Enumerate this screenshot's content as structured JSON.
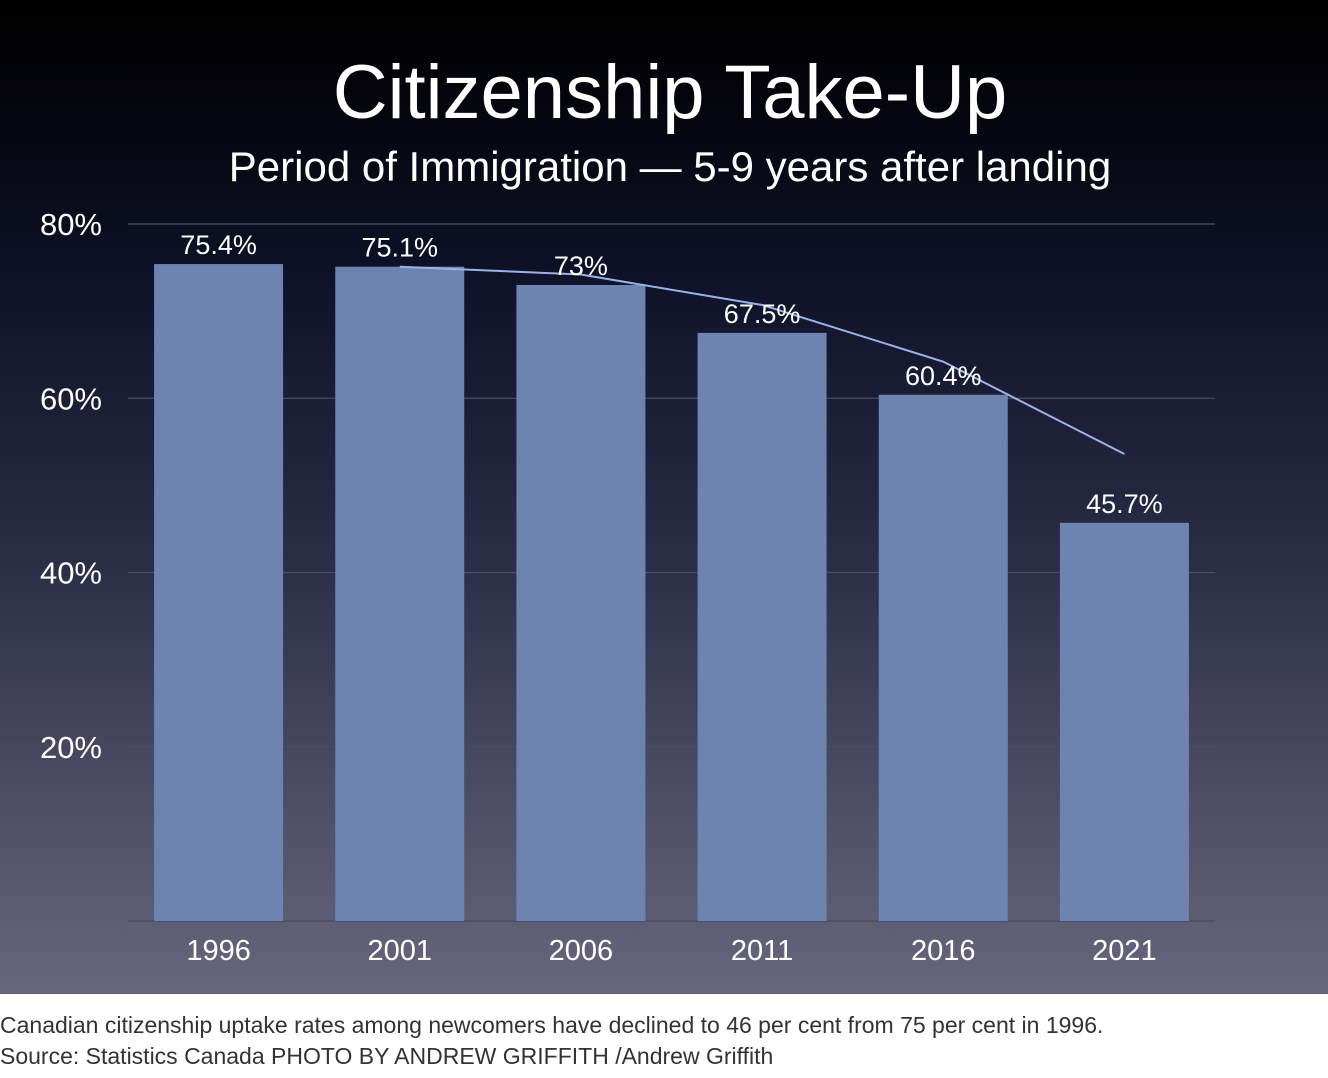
{
  "chart_data": {
    "type": "bar",
    "title": "Citizenship Take-Up",
    "subtitle": "Period of Immigration — 5-9 years after landing",
    "categories": [
      "1996",
      "2001",
      "2006",
      "2011",
      "2016",
      "2021"
    ],
    "values": [
      75.4,
      75.1,
      73,
      67.5,
      60.4,
      45.7
    ],
    "value_labels": [
      "75.4%",
      "75.1%",
      "73%",
      "67.5%",
      "60.4%",
      "45.7%"
    ],
    "ylim": [
      0,
      80
    ],
    "yticks": [
      20,
      40,
      60,
      80
    ],
    "ytick_labels": [
      "20%",
      "40%",
      "60%",
      "80%"
    ],
    "grid": true,
    "trend_line": {
      "x": [
        "2001",
        "2006",
        "2011",
        "2016",
        "2021"
      ],
      "y": [
        75.1,
        74.2,
        70.7,
        64.2,
        53.6
      ]
    },
    "colors": {
      "bar": "#6d84b1",
      "trend": "#9bb4e6",
      "grid": "#4a4d66",
      "text": "#ffffff"
    }
  },
  "caption": {
    "text": "Canadian citizenship uptake rates among newcomers have declined to 46 per cent from 75 per cent in 1996.",
    "credit": "Source: Statistics Canada PHOTO BY ANDREW GRIFFITH /Andrew Griffith"
  }
}
